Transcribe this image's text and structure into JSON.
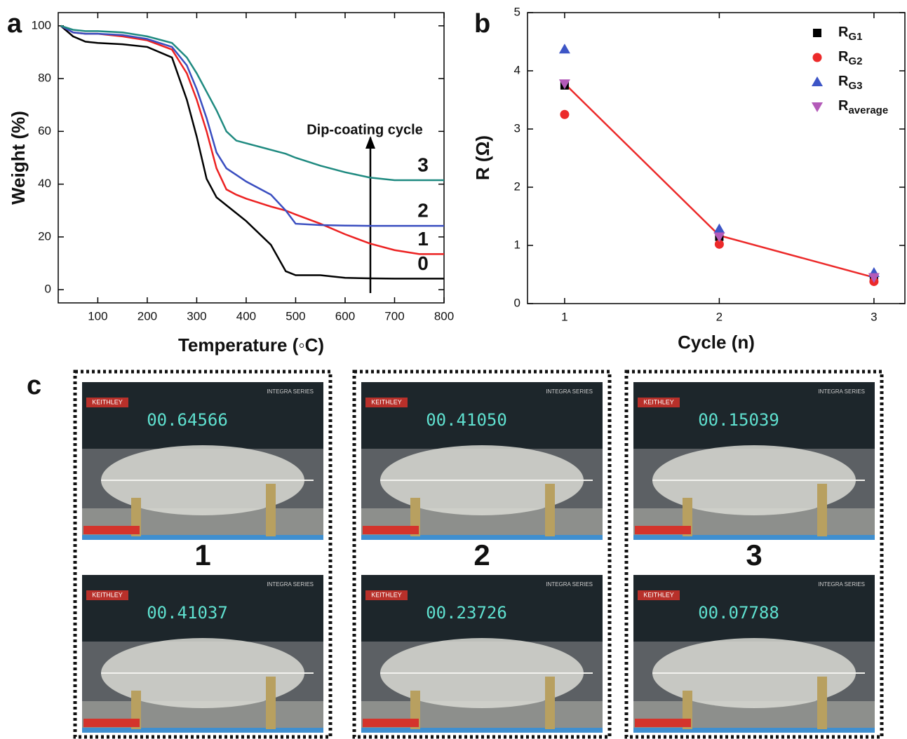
{
  "panel_labels": [
    "a",
    "b",
    "c"
  ],
  "chart_data": [
    {
      "type": "line",
      "xlabel": "Temperature (◦C)",
      "ylabel": "Weight (%)",
      "annotation": "Dip-coating cycle",
      "x": [
        25,
        50,
        75,
        100,
        150,
        200,
        250,
        280,
        300,
        320,
        340,
        360,
        380,
        400,
        450,
        480,
        500,
        550,
        600,
        650,
        700,
        750,
        800
      ],
      "xlim": [
        20,
        800
      ],
      "xticks": [
        100,
        200,
        300,
        400,
        500,
        600,
        700,
        800
      ],
      "ylim": [
        -5,
        105
      ],
      "yticks": [
        0,
        20,
        40,
        60,
        80,
        100
      ],
      "series": [
        {
          "name": "0",
          "color": "#000000",
          "values": [
            100,
            96,
            94,
            93.5,
            93,
            92,
            88,
            72,
            58,
            42,
            35,
            32,
            29,
            26,
            17,
            7,
            5.5,
            5.5,
            4.5,
            4.3,
            4.2,
            4.2,
            4.2
          ]
        },
        {
          "name": "1",
          "color": "#ec2222",
          "values": [
            100,
            97.5,
            97,
            97,
            96,
            94.5,
            91,
            82,
            72,
            60,
            46,
            38,
            36,
            34.5,
            31.5,
            30,
            28.5,
            25,
            21,
            17.5,
            15,
            13.5,
            13.5
          ]
        },
        {
          "name": "2",
          "color": "#3a4ec0",
          "values": [
            100,
            97.5,
            97,
            97,
            96.5,
            95,
            92,
            85,
            76,
            65,
            52,
            46,
            43.5,
            41,
            36,
            30,
            25,
            24.5,
            24.3,
            24.2,
            24.2,
            24.2,
            24.2
          ]
        },
        {
          "name": "3",
          "color": "#1f8a80",
          "values": [
            100,
            98.5,
            98,
            98,
            97.5,
            96,
            93.5,
            88,
            82,
            75,
            68,
            60,
            56.5,
            55.5,
            53,
            51.5,
            50,
            47,
            44.5,
            42.5,
            41.5,
            41.5,
            41.5
          ]
        }
      ]
    },
    {
      "type": "scatter",
      "xlabel": "Cycle (n)",
      "ylabel": "R (Ω)",
      "x": [
        1,
        2,
        3
      ],
      "xlim": [
        0.76,
        3.2
      ],
      "xticks": [
        1,
        2,
        3
      ],
      "ylim": [
        0,
        5
      ],
      "yticks": [
        0,
        1,
        2,
        3,
        4,
        5
      ],
      "series": [
        {
          "name": "R",
          "name_sub": "G1",
          "marker": "square",
          "color": "#000000",
          "values": [
            3.75,
            1.15,
            0.45
          ]
        },
        {
          "name": "R",
          "name_sub": "G2",
          "marker": "circle",
          "color": "#ec2a2a",
          "values": [
            3.25,
            1.02,
            0.38
          ]
        },
        {
          "name": "R",
          "name_sub": "G3",
          "marker": "triangle-up",
          "color": "#3d55c6",
          "values": [
            4.37,
            1.28,
            0.53
          ]
        },
        {
          "name": "R",
          "name_sub": "average",
          "marker": "triangle-down",
          "color": "#b35ab8",
          "values": [
            3.78,
            1.15,
            0.45
          ]
        }
      ],
      "fit_line": {
        "color": "#ec2a2a",
        "values": [
          3.78,
          1.17,
          0.45
        ]
      }
    }
  ],
  "photo_brand": "KEITHLEY",
  "photo_series": "INTEGRA SERIES",
  "photos": [
    {
      "label": "1",
      "readings": [
        "00.64566",
        "00.41037"
      ]
    },
    {
      "label": "2",
      "readings": [
        "00.41050",
        "00.23726"
      ]
    },
    {
      "label": "3",
      "readings": [
        "00.15039",
        "00.07788"
      ]
    }
  ]
}
